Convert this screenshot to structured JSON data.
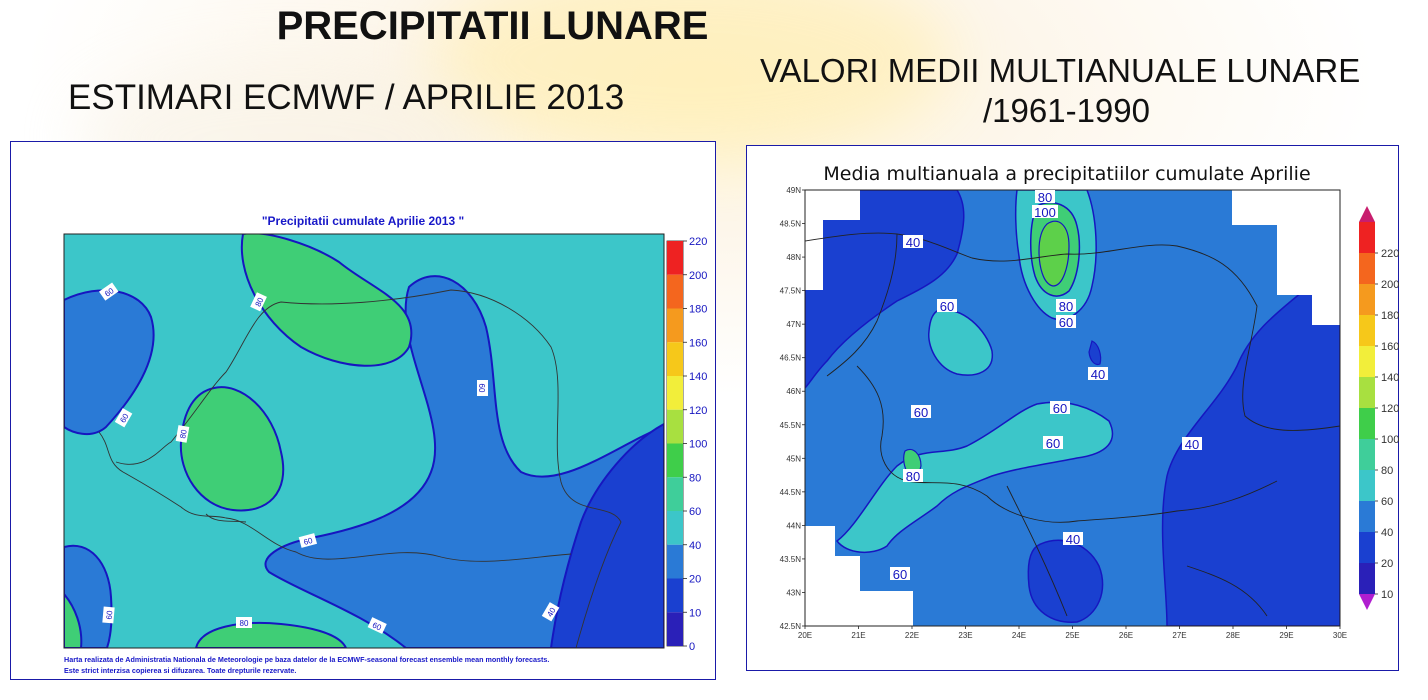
{
  "page": {
    "title": "PRECIPITATII LUNARE",
    "left_heading": "ESTIMARI ECMWF / APRILIE 2013",
    "right_heading_line1": "VALORI MEDII MULTIANUALE LUNARE",
    "right_heading_line2": "/1961-1990"
  },
  "left_map": {
    "title": "\"Precipitatii cumulate Aprilie 2013 \"",
    "footer_line1": "Harta realizata de Administratia Nationala de Meteorologie pe baza datelor de la ECMWF-seasonal forecast ensemble mean monthly forecasts.",
    "footer_line2": "Este strict interzisa copierea si difuzarea. Toate drepturile rezervate.",
    "colorbar_ticks": [
      "220",
      "200",
      "180",
      "160",
      "140",
      "120",
      "100",
      "80",
      "60",
      "40",
      "20",
      "10",
      "0"
    ],
    "contour_labels": {
      "l1": "60",
      "l2": "80",
      "l3": "60",
      "l4": "60",
      "l5": "80",
      "l6": "60",
      "l7": "60",
      "l8": "60",
      "l9": "80",
      "l10": "40"
    },
    "colors": {
      "lt40": "#1a40d0",
      "c40_60": "#2a7ad6",
      "c60_80": "#3cc6c9",
      "c80_100": "#3fce76",
      "c100_120": "#5dd04a"
    }
  },
  "right_map": {
    "title": "Media multianuala a precipitatiilor cumulate Aprilie",
    "lat_ticks": [
      "49N",
      "48.5N",
      "48N",
      "47.5N",
      "47N",
      "46.5N",
      "46N",
      "45.5N",
      "45N",
      "44.5N",
      "44N",
      "43.5N",
      "43N",
      "42.5N"
    ],
    "lon_ticks": [
      "20E",
      "21E",
      "22E",
      "23E",
      "24E",
      "25E",
      "26E",
      "27E",
      "28E",
      "29E",
      "30E"
    ],
    "colorbar_ticks": [
      "220",
      "200",
      "180",
      "160",
      "140",
      "120",
      "100",
      "80",
      "60",
      "40",
      "20",
      "10"
    ],
    "contour_labels": {
      "r1": "80",
      "r2": "100",
      "r3": "40",
      "r4": "60",
      "r5": "80",
      "r6": "60",
      "r7": "40",
      "r8": "60",
      "r9": "60",
      "r10": "60",
      "r11": "40",
      "r12": "80",
      "r13": "40",
      "r14": "60"
    }
  }
}
